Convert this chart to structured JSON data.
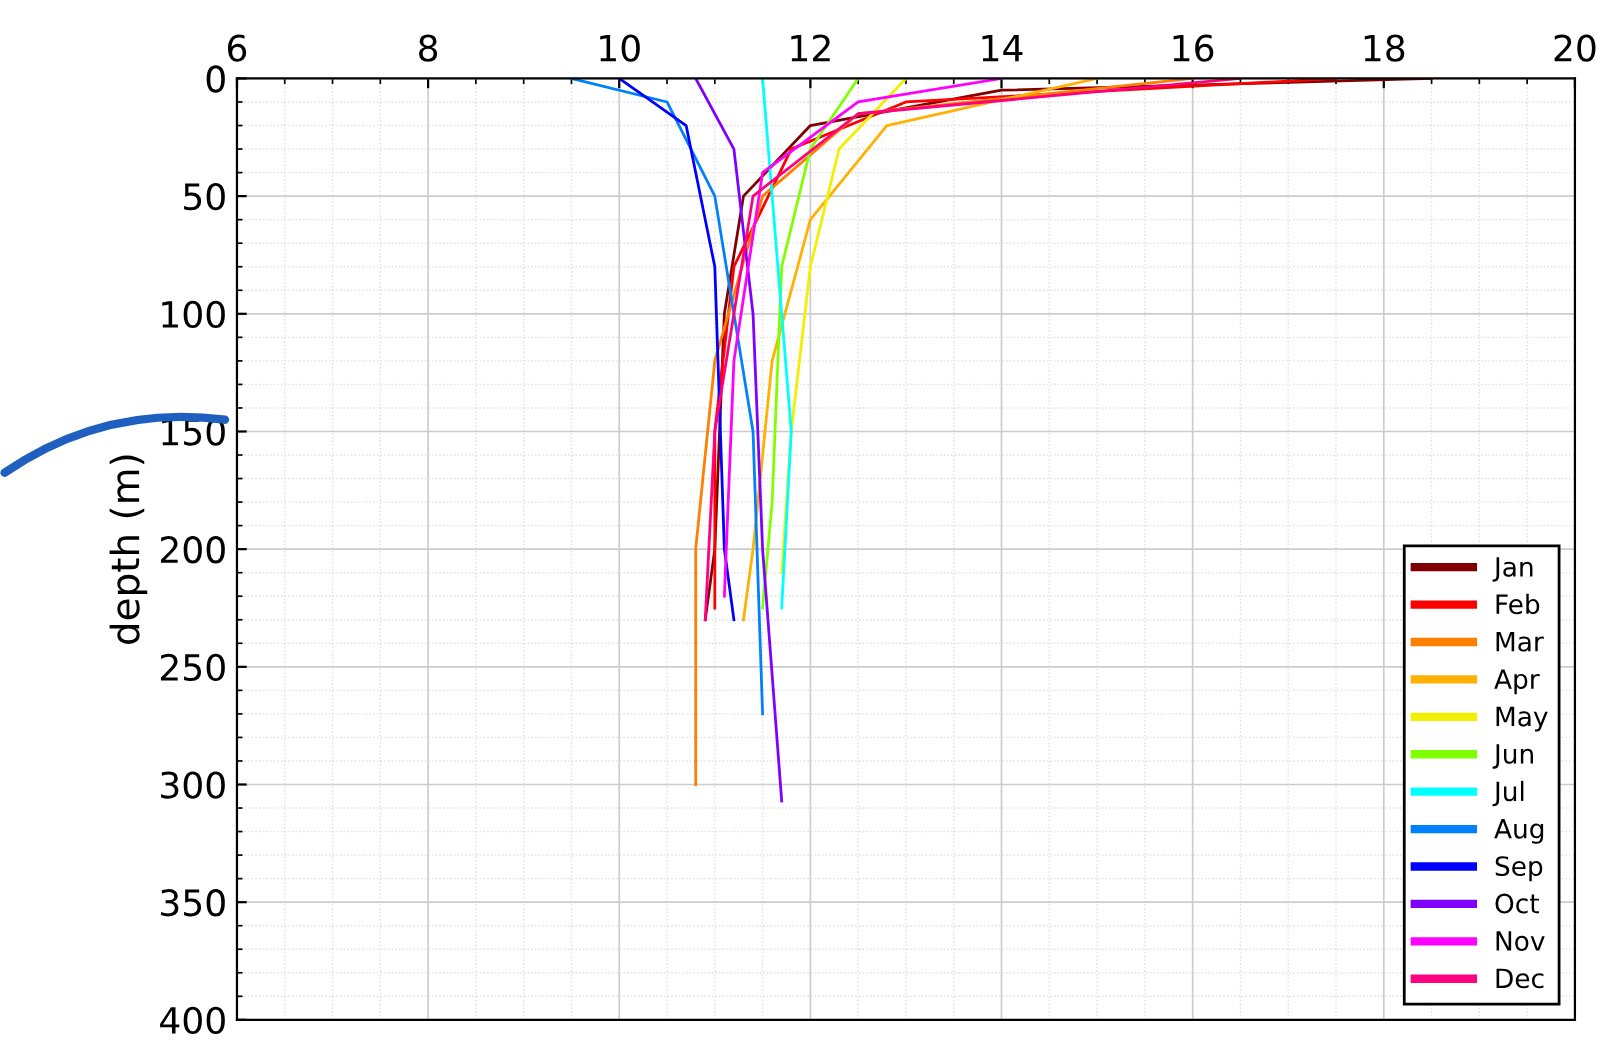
{
  "chart_data": {
    "type": "line",
    "ylabel": "depth (m)",
    "xlim": [
      6,
      20
    ],
    "xticks": [
      6,
      8,
      10,
      12,
      14,
      16,
      18,
      20
    ],
    "ylim": [
      400,
      0
    ],
    "yticks": [
      0,
      50,
      100,
      150,
      200,
      250,
      300,
      350,
      400
    ],
    "grid": true,
    "legend": "bottom right",
    "line_style": "solid",
    "series": [
      {
        "name": "Jan",
        "color": "#800000",
        "x": [
          18.5,
          14,
          12,
          11.3,
          11.1,
          11.0,
          10.9
        ],
        "values": [
          0,
          5,
          20,
          50,
          100,
          200,
          230
        ]
      },
      {
        "name": "Feb",
        "color": "#ff0000",
        "x": [
          17.5,
          13,
          11.8,
          11.2,
          11.0,
          11.0
        ],
        "values": [
          0,
          10,
          30,
          80,
          150,
          225
        ]
      },
      {
        "name": "Mar",
        "color": "#ff7f00",
        "x": [
          16,
          12.5,
          11.5,
          11.0,
          10.8,
          10.8
        ],
        "values": [
          0,
          15,
          50,
          120,
          200,
          300
        ]
      },
      {
        "name": "Apr",
        "color": "#ffb000",
        "x": [
          15,
          12.8,
          12,
          11.6,
          11.4,
          11.3
        ],
        "values": [
          0,
          20,
          60,
          120,
          200,
          230
        ]
      },
      {
        "name": "May",
        "color": "#f0f000",
        "x": [
          13,
          12.3,
          12,
          11.8,
          11.7
        ],
        "values": [
          0,
          30,
          80,
          150,
          210
        ]
      },
      {
        "name": "Jun",
        "color": "#80ff00",
        "x": [
          12.5,
          12,
          11.7,
          11.6,
          11.5
        ],
        "values": [
          0,
          30,
          80,
          180,
          225
        ]
      },
      {
        "name": "Jul",
        "color": "#00ffff",
        "x": [
          11.5,
          11.6,
          11.8,
          11.7
        ],
        "values": [
          0,
          50,
          150,
          225
        ]
      },
      {
        "name": "Aug",
        "color": "#0080ff",
        "x": [
          9.5,
          10.5,
          11.0,
          11.4,
          11.5
        ],
        "values": [
          0,
          10,
          50,
          150,
          270
        ]
      },
      {
        "name": "Sep",
        "color": "#0000ff",
        "x": [
          10,
          10.7,
          11,
          11.1,
          11.2
        ],
        "values": [
          0,
          20,
          80,
          200,
          230
        ]
      },
      {
        "name": "Oct",
        "color": "#8000ff",
        "x": [
          10.8,
          11.2,
          11.4,
          11.5,
          11.7
        ],
        "values": [
          0,
          30,
          100,
          200,
          307
        ]
      },
      {
        "name": "Nov",
        "color": "#ff00ff",
        "x": [
          14,
          12.5,
          11.5,
          11.2,
          11.1
        ],
        "values": [
          0,
          10,
          40,
          120,
          220
        ]
      },
      {
        "name": "Dec",
        "color": "#ff0080",
        "x": [
          16.5,
          12.5,
          11.4,
          11.0,
          10.9
        ],
        "values": [
          0,
          15,
          50,
          150,
          230
        ]
      }
    ]
  }
}
